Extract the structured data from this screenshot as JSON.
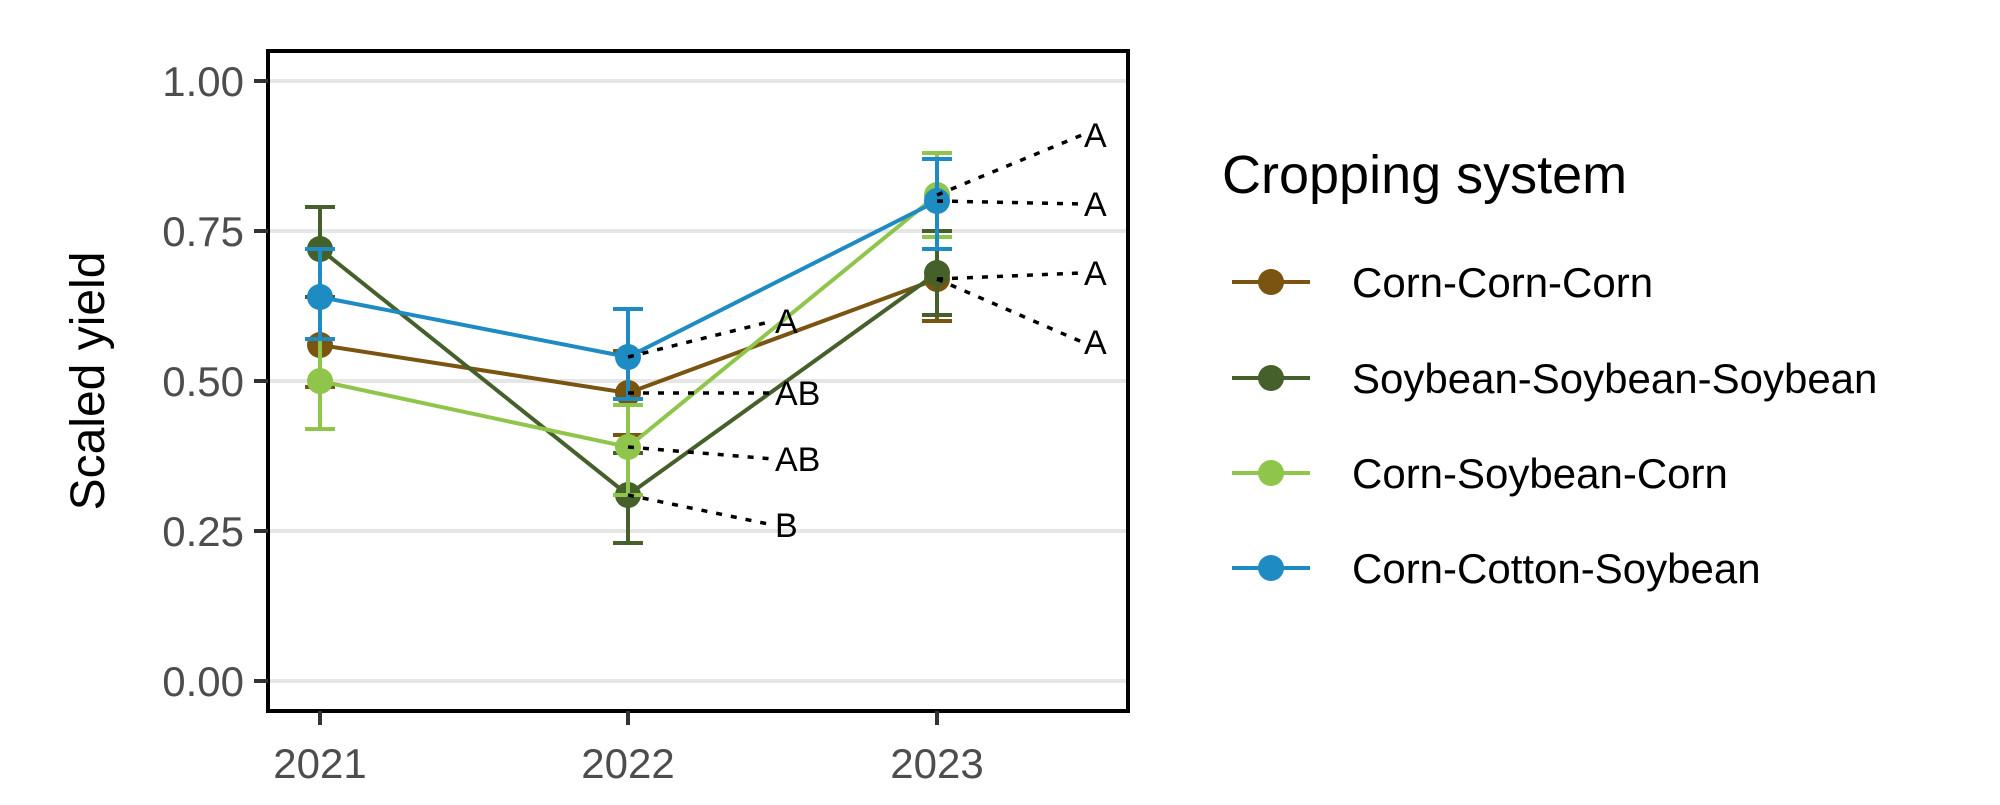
{
  "chart_data": {
    "type": "line",
    "xlabel": "",
    "ylabel": "Scaled yield",
    "ylim": [
      -0.05,
      1.05
    ],
    "yticks": [
      0.0,
      0.25,
      0.5,
      0.75,
      1.0
    ],
    "ytick_labels": [
      "0.00",
      "0.25",
      "0.50",
      "0.75",
      "1.00"
    ],
    "x": [
      "2021",
      "2022",
      "2023"
    ],
    "grid": "horizontal major gridlines",
    "legend": {
      "title": "Cropping system",
      "placement": "right"
    },
    "series": [
      {
        "name": "Corn-Corn-Corn",
        "color": "#7a5411",
        "values": [
          0.56,
          0.48,
          0.67
        ],
        "error": [
          [
            0.49,
            0.64
          ],
          [
            0.41,
            0.55
          ],
          [
            0.6,
            0.75
          ]
        ]
      },
      {
        "name": "Soybean-Soybean-Soybean",
        "color": "#45602a",
        "values": [
          0.72,
          0.31,
          0.68
        ],
        "error": [
          [
            0.64,
            0.79
          ],
          [
            0.23,
            0.38
          ],
          [
            0.61,
            0.75
          ]
        ]
      },
      {
        "name": "Corn-Soybean-Corn",
        "color": "#8ec54a",
        "values": [
          0.5,
          0.39,
          0.81
        ],
        "error": [
          [
            0.42,
            0.57
          ],
          [
            0.31,
            0.46
          ],
          [
            0.74,
            0.88
          ]
        ]
      },
      {
        "name": "Corn-Cotton-Soybean",
        "color": "#1e8bc3",
        "values": [
          0.64,
          0.54,
          0.8
        ],
        "error": [
          [
            0.57,
            0.72
          ],
          [
            0.47,
            0.62
          ],
          [
            0.72,
            0.87
          ]
        ]
      }
    ],
    "annotations": [
      {
        "x": "2022",
        "from": 0.54,
        "to": 0.6,
        "text": "A"
      },
      {
        "x": "2022",
        "from": 0.48,
        "to": 0.48,
        "text": "AB"
      },
      {
        "x": "2022",
        "from": 0.39,
        "to": 0.37,
        "text": "AB"
      },
      {
        "x": "2022",
        "from": 0.31,
        "to": 0.26,
        "text": "B"
      },
      {
        "x": "2023",
        "from": 0.81,
        "to": 0.91,
        "text": "A"
      },
      {
        "x": "2023",
        "from": 0.8,
        "to": 0.795,
        "text": "A"
      },
      {
        "x": "2023",
        "from": 0.67,
        "to": 0.68,
        "text": "A"
      },
      {
        "x": "2023",
        "from": 0.67,
        "to": 0.565,
        "text": "A"
      }
    ]
  }
}
